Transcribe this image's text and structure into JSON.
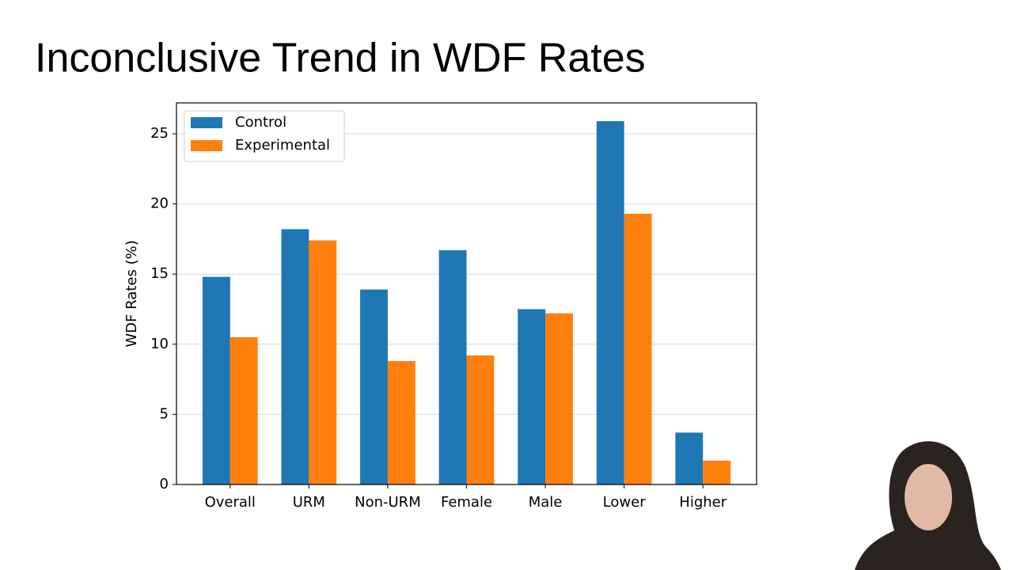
{
  "title": "Inconclusive Trend in WDF Rates",
  "chart_data": {
    "type": "bar",
    "ylabel": "WDF Rates (%)",
    "categories": [
      "Overall",
      "URM",
      "Non-URM",
      "Female",
      "Male",
      "Lower",
      "Higher"
    ],
    "series": [
      {
        "name": "Control",
        "color": "#1f77b4",
        "values": [
          14.8,
          18.2,
          13.9,
          16.7,
          12.5,
          25.9,
          3.7
        ]
      },
      {
        "name": "Experimental",
        "color": "#ff7f0e",
        "values": [
          10.5,
          17.4,
          8.8,
          9.2,
          12.2,
          19.3,
          1.7
        ]
      }
    ],
    "ylim": [
      0,
      27.2
    ],
    "yticks": [
      0,
      5,
      10,
      15,
      20,
      25
    ],
    "grid": true,
    "legend": "upper left"
  }
}
